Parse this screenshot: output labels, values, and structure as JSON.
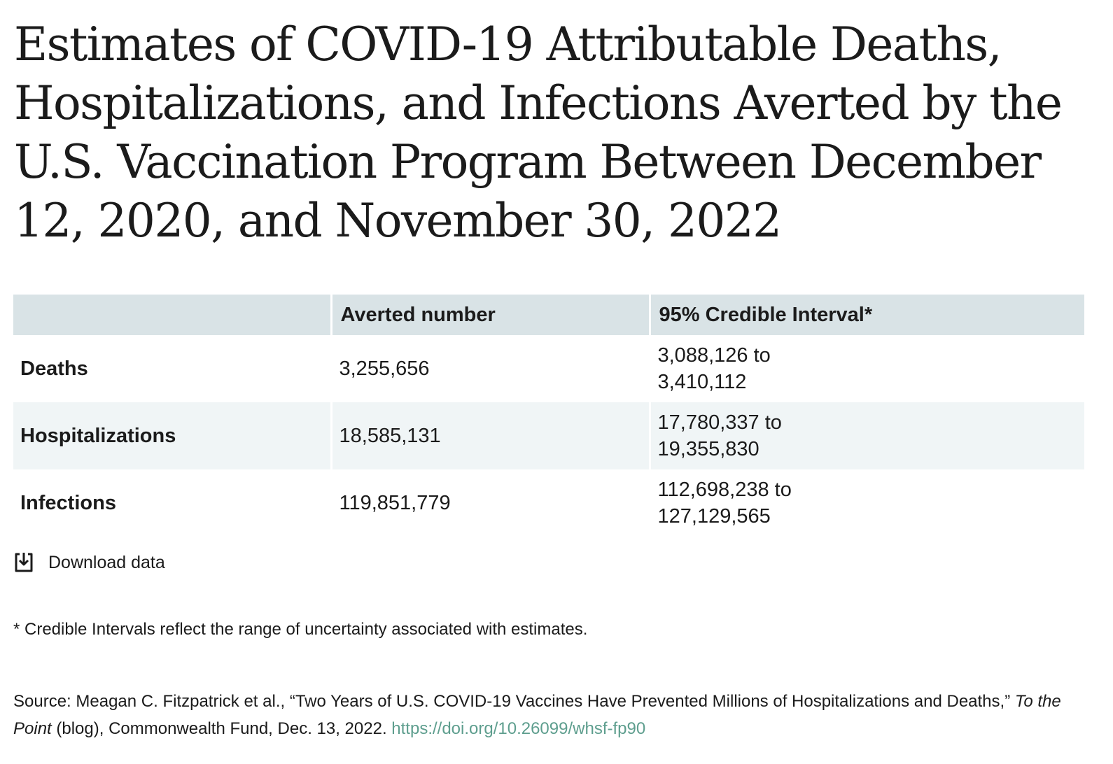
{
  "title": "Estimates of COVID-19 Attributable Deaths, Hospitalizations, and Infections Averted by the U.S. Vaccination Program Between December 12, 2020, and November 30, 2022",
  "chart_data": {
    "type": "table",
    "columns": [
      "",
      "Averted number",
      "95% Credible Interval*"
    ],
    "rows": [
      {
        "label": "Deaths",
        "averted": "3,255,656",
        "interval_low": "3,088,126 to",
        "interval_high": "3,410,112"
      },
      {
        "label": "Hospitalizations",
        "averted": "18,585,131",
        "interval_low": "17,780,337 to",
        "interval_high": "19,355,830"
      },
      {
        "label": "Infections",
        "averted": "119,851,779",
        "interval_low": "112,698,238 to",
        "interval_high": "127,129,565"
      }
    ]
  },
  "download": {
    "label": "Download data",
    "icon": "download-icon"
  },
  "footnote": "* Credible Intervals reflect the range of uncertainty associated with estimates.",
  "source": {
    "prefix": "Source: Meagan C. Fitzpatrick et al., “Two Years of U.S. COVID-19 Vaccines Have Prevented Millions of Hospitalizations and Deaths,” ",
    "publication": "To the Point",
    "suffix": " (blog), Commonwealth Fund, Dec. 13, 2022. ",
    "link": "https://doi.org/10.26099/whsf-fp90"
  },
  "colors": {
    "header_bg": "#d9e3e6",
    "alt_row_bg": "#f0f5f6",
    "link": "#5e9e8e",
    "text": "#1b1b1b"
  }
}
